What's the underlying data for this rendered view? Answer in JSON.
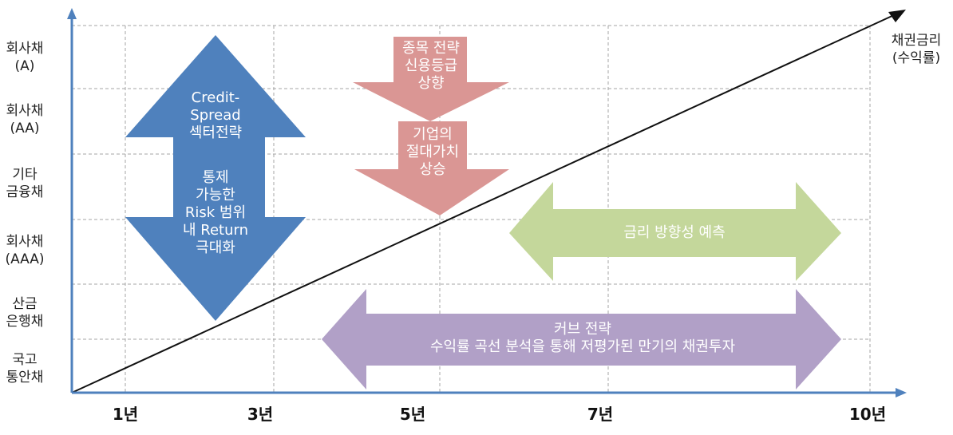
{
  "y_labels": [
    [
      "회사채",
      "(A)"
    ],
    [
      "회사채",
      "(AA)"
    ],
    [
      "기타",
      "금융채"
    ],
    [
      "회사채",
      "(AAA)"
    ],
    [
      "산금",
      "은행채"
    ],
    [
      "국고",
      "통안채"
    ]
  ],
  "x_labels": [
    "1년",
    "3년",
    "5년",
    "7년",
    "10년"
  ],
  "diagonal_label": [
    "채권금리",
    "(수익률)"
  ],
  "credit_arrow": {
    "top_lines": [
      "Credit-",
      "Spread",
      "섹터전략"
    ],
    "bottom_lines": [
      "통제",
      "가능한",
      "Risk 범위",
      "내 Return",
      "극대화"
    ],
    "color": "#4f81bd"
  },
  "pink_arrow_1": {
    "lines": [
      "종목 전략",
      "신용등급",
      "상향"
    ],
    "color": "#da9694"
  },
  "pink_arrow_2": {
    "lines": [
      "기업의",
      "절대가치",
      "상승"
    ],
    "color": "#da9694"
  },
  "green_arrow": {
    "lines": [
      "금리 방향성 예측"
    ],
    "color": "#c4d79b"
  },
  "purple_arrow": {
    "lines": [
      "커브 전략",
      "수익률 곡선 분석을 통해 저평가된 만기의 채권투자"
    ],
    "color": "#b1a0c7"
  },
  "axis_color": "#4f81bd",
  "grid_color": "#a6a6a6"
}
